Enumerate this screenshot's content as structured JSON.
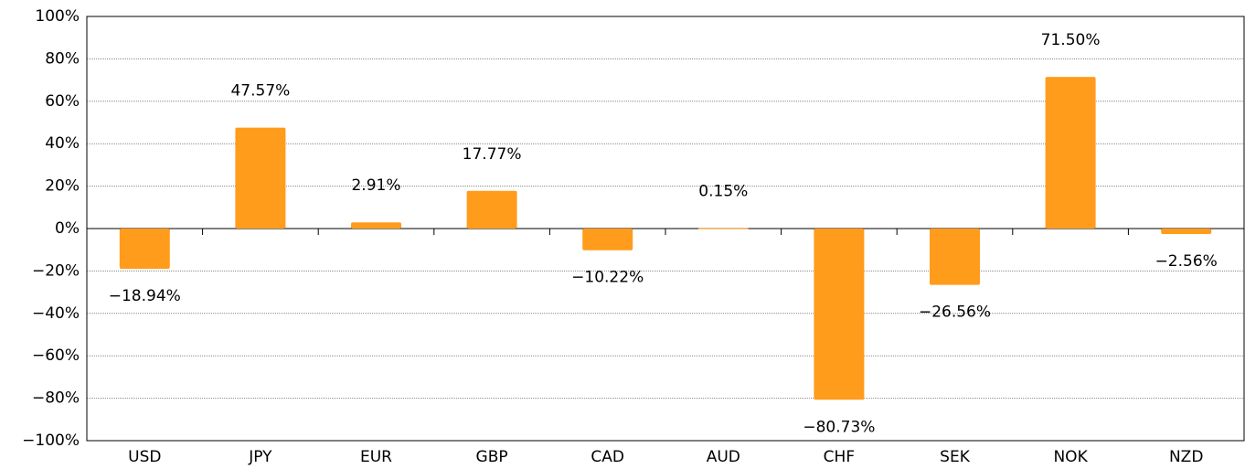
{
  "chart_data": {
    "type": "bar",
    "categories": [
      "USD",
      "JPY",
      "EUR",
      "GBP",
      "CAD",
      "AUD",
      "CHF",
      "SEK",
      "NOK",
      "NZD"
    ],
    "values": [
      -18.94,
      47.57,
      2.91,
      17.77,
      -10.22,
      0.15,
      -80.73,
      -26.56,
      71.5,
      -2.56
    ],
    "value_labels": [
      "−18.94%",
      "47.57%",
      "2.91%",
      "17.77%",
      "−10.22%",
      "0.15%",
      "−80.73%",
      "−26.56%",
      "71.50%",
      "−2.56%"
    ],
    "color": "#ff9c1c",
    "ylim": [
      -100,
      100
    ],
    "yticks": [
      {
        "value": -100,
        "label": "−100%"
      },
      {
        "value": -80,
        "label": "−80%"
      },
      {
        "value": -60,
        "label": "−60%"
      },
      {
        "value": -40,
        "label": "−40%"
      },
      {
        "value": -20,
        "label": "−20%"
      },
      {
        "value": 0,
        "label": "0%"
      },
      {
        "value": 20,
        "label": "20%"
      },
      {
        "value": 40,
        "label": "40%"
      },
      {
        "value": 60,
        "label": "60%"
      },
      {
        "value": 80,
        "label": "80%"
      },
      {
        "value": 100,
        "label": "100%"
      }
    ],
    "grid": true
  }
}
